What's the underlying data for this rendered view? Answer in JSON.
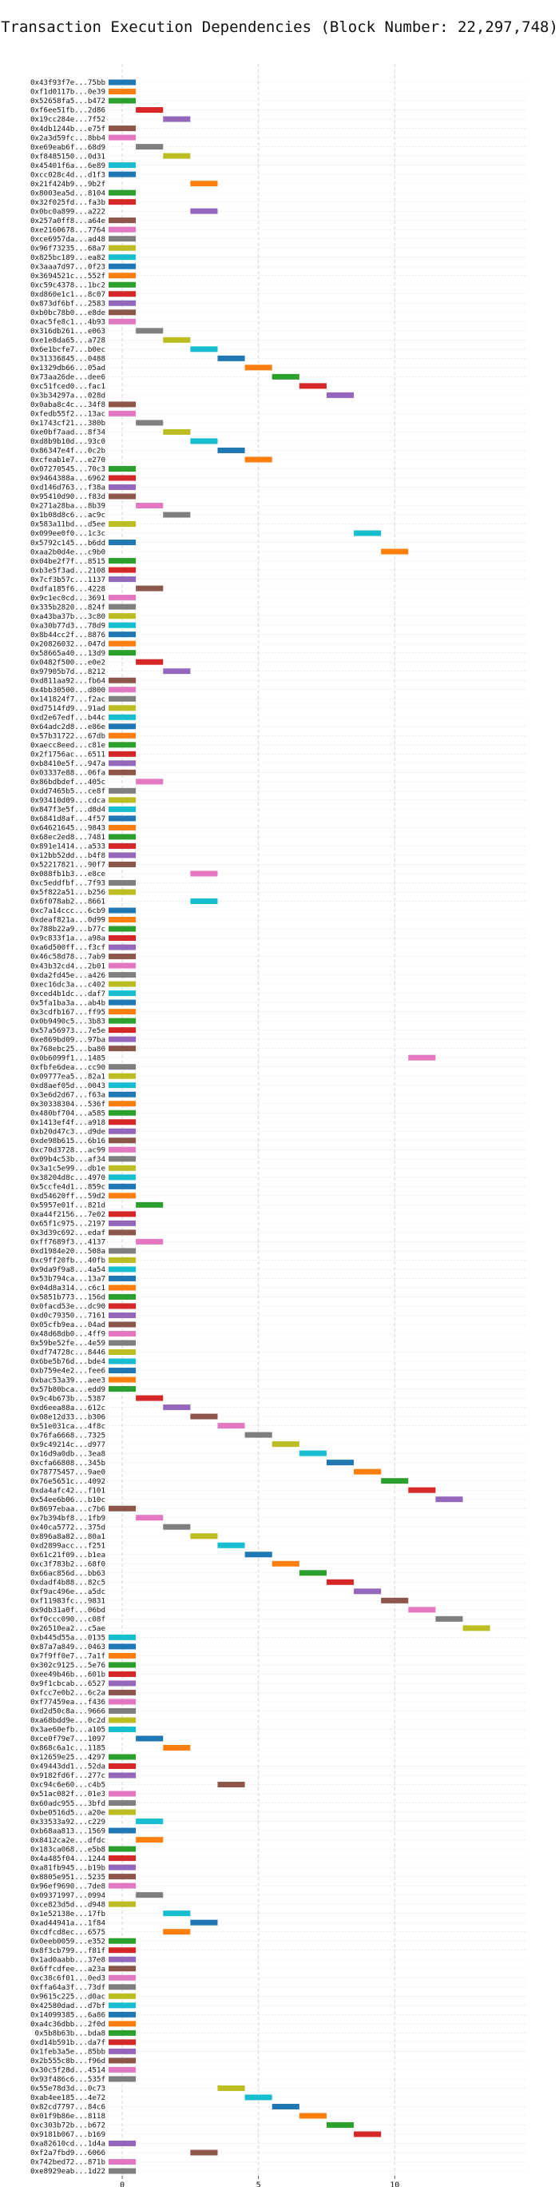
{
  "chart_data": {
    "type": "bar",
    "orientation": "horizontal",
    "title": "Transaction Execution Dependencies (Block Number: 22,297,748)",
    "xlabel": "",
    "ylabel": "",
    "xlim": [
      -0.5,
      14.8
    ],
    "xticks": [
      0,
      5,
      10
    ],
    "grid": "dashed, vertical at ticks and horizontal per row",
    "palette": [
      "#1f77b4",
      "#ff7f0e",
      "#2ca02c",
      "#d62728",
      "#9467bd",
      "#8c564b",
      "#e377c2",
      "#7f7f7f",
      "#bcbd22",
      "#17becf"
    ],
    "bars": [
      {
        "tx": "0x43f93f7e...75bb",
        "start": 0
      },
      {
        "tx": "0xf1d0117b...0e39",
        "start": 0
      },
      {
        "tx": "0x52658fa5...b472",
        "start": 0
      },
      {
        "tx": "0xf6ee51fb...2d86",
        "start": 1
      },
      {
        "tx": "0x19cc284e...7f52",
        "start": 2
      },
      {
        "tx": "0x4db1244b...e75f",
        "start": 0
      },
      {
        "tx": "0x2a3d59fc...8bb4",
        "start": 0
      },
      {
        "tx": "0xe69eab6f...68d9",
        "start": 1
      },
      {
        "tx": "0xf8485150...0d31",
        "start": 2
      },
      {
        "tx": "0x45401f6a...6e89",
        "start": 0
      },
      {
        "tx": "0xcc028c4d...d1f3",
        "start": 0
      },
      {
        "tx": "0x21f424b9...9b2f",
        "start": 3
      },
      {
        "tx": "0x8003ea5d...8104",
        "start": 0
      },
      {
        "tx": "0x32f025fd...fa3b",
        "start": 0
      },
      {
        "tx": "0x0bc0a899...a222",
        "start": 3
      },
      {
        "tx": "0x257a0ff8...a64e",
        "start": 0
      },
      {
        "tx": "0xe2160678...7764",
        "start": 0
      },
      {
        "tx": "0xce6957da...ad48",
        "start": 0
      },
      {
        "tx": "0x96f73235...68a7",
        "start": 0
      },
      {
        "tx": "0x825bc189...ea82",
        "start": 0
      },
      {
        "tx": "0x3aaa7d97...0f23",
        "start": 0
      },
      {
        "tx": "0x3694521c...552f",
        "start": 0
      },
      {
        "tx": "0xc59c4378...1bc2",
        "start": 0
      },
      {
        "tx": "0xd860e1c1...8c07",
        "start": 0
      },
      {
        "tx": "0x873df6bf...2583",
        "start": 0
      },
      {
        "tx": "0xb0bc78b0...e8de",
        "start": 0
      },
      {
        "tx": "0xac5fe8c1...4b93",
        "start": 0
      },
      {
        "tx": "0x316db261...e063",
        "start": 1
      },
      {
        "tx": "0xe1e8da65...a728",
        "start": 2
      },
      {
        "tx": "0x6e1bcfe7...b0ec",
        "start": 3
      },
      {
        "tx": "0x31336845...0488",
        "start": 4
      },
      {
        "tx": "0x1329db66...05ad",
        "start": 5
      },
      {
        "tx": "0x73aa26de...dee6",
        "start": 6
      },
      {
        "tx": "0xc51fced0...fac1",
        "start": 7
      },
      {
        "tx": "0x3b34297a...028d",
        "start": 8
      },
      {
        "tx": "0x0aba8c4c...34f8",
        "start": 0
      },
      {
        "tx": "0xfedb55f2...13ac",
        "start": 0
      },
      {
        "tx": "0x1743cf21...380b",
        "start": 1
      },
      {
        "tx": "0xe0bf7aad...8f34",
        "start": 2
      },
      {
        "tx": "0xd8b9b10d...93c0",
        "start": 3
      },
      {
        "tx": "0x86347e4f...0c2b",
        "start": 4
      },
      {
        "tx": "0xcfeab1e7...e270",
        "start": 5
      },
      {
        "tx": "0x07270545...70c3",
        "start": 0
      },
      {
        "tx": "0x9464388a...6962",
        "start": 0
      },
      {
        "tx": "0xd146d763...f38a",
        "start": 0
      },
      {
        "tx": "0x95410d90...f83d",
        "start": 0
      },
      {
        "tx": "0x271a28ba...8b39",
        "start": 1
      },
      {
        "tx": "0x1b08d8c6...ac9c",
        "start": 2
      },
      {
        "tx": "0x583a11bd...d5ee",
        "start": 0
      },
      {
        "tx": "0x099ee0f0...1c3c",
        "start": 9
      },
      {
        "tx": "0x5792c145...b6dd",
        "start": 0
      },
      {
        "tx": "0xaa2b0d4e...c9b0",
        "start": 10
      },
      {
        "tx": "0x04be2f7f...8515",
        "start": 0
      },
      {
        "tx": "0xb3e5f3ad...2108",
        "start": 0
      },
      {
        "tx": "0x7cf3b57c...1137",
        "start": 0
      },
      {
        "tx": "0xdfa185f6...4228",
        "start": 1
      },
      {
        "tx": "0x9c1ec0cd...3691",
        "start": 0
      },
      {
        "tx": "0x335b2820...824f",
        "start": 0
      },
      {
        "tx": "0xa43ba37b...3c80",
        "start": 0
      },
      {
        "tx": "0xa30b77d3...78d9",
        "start": 0
      },
      {
        "tx": "0x8b44cc2f...8876",
        "start": 0
      },
      {
        "tx": "0x20826032...047d",
        "start": 0
      },
      {
        "tx": "0x58665a40...13d9",
        "start": 0
      },
      {
        "tx": "0x0482f500...e0e2",
        "start": 1
      },
      {
        "tx": "0x97905b7d...8212",
        "start": 2
      },
      {
        "tx": "0xd811aa92...fb64",
        "start": 0
      },
      {
        "tx": "0x4bb30500...d800",
        "start": 0
      },
      {
        "tx": "0x141824f7...f2ac",
        "start": 0
      },
      {
        "tx": "0xd7514fd9...91ad",
        "start": 0
      },
      {
        "tx": "0xd2e67edf...b44c",
        "start": 0
      },
      {
        "tx": "0x64adc2d8...e86e",
        "start": 0
      },
      {
        "tx": "0x57b31722...67db",
        "start": 0
      },
      {
        "tx": "0xaecc8eed...c81e",
        "start": 0
      },
      {
        "tx": "0x2f1756ac...6511",
        "start": 0
      },
      {
        "tx": "0xb8410e5f...947a",
        "start": 0
      },
      {
        "tx": "0x03337e88...06fa",
        "start": 0
      },
      {
        "tx": "0x86bdbdef...405c",
        "start": 1
      },
      {
        "tx": "0xdd7465b5...ce8f",
        "start": 0
      },
      {
        "tx": "0x93410d09...cdca",
        "start": 0
      },
      {
        "tx": "0x847f3e5f...d8d4",
        "start": 0
      },
      {
        "tx": "0x6841d8af...4f57",
        "start": 0
      },
      {
        "tx": "0x64621645...9843",
        "start": 0
      },
      {
        "tx": "0x68ec2ed8...7481",
        "start": 0
      },
      {
        "tx": "0x891e1414...a533",
        "start": 0
      },
      {
        "tx": "0x12bb52dd...b4f8",
        "start": 0
      },
      {
        "tx": "0x52217821...90f7",
        "start": 0
      },
      {
        "tx": "0x088fb1b3...e8ce",
        "start": 3
      },
      {
        "tx": "0xc5eddfbf...7f93",
        "start": 0
      },
      {
        "tx": "0x5f822a51...b256",
        "start": 0
      },
      {
        "tx": "0x6f078ab2...8661",
        "start": 3
      },
      {
        "tx": "0xc7a14ccc...6cb9",
        "start": 0
      },
      {
        "tx": "0xdeaf821a...0d99",
        "start": 0
      },
      {
        "tx": "0x788b22a9...b77c",
        "start": 0
      },
      {
        "tx": "0x9c833f1a...a98a",
        "start": 0
      },
      {
        "tx": "0xa6d500ff...f3cf",
        "start": 0
      },
      {
        "tx": "0x46c58d78...7ab9",
        "start": 0
      },
      {
        "tx": "0x43b32cd4...2b01",
        "start": 0
      },
      {
        "tx": "0xda2fd45e...a426",
        "start": 0
      },
      {
        "tx": "0xec16dc3a...c402",
        "start": 0
      },
      {
        "tx": "0xced4b1dc...daf7",
        "start": 0
      },
      {
        "tx": "0x5fa1ba3a...ab4b",
        "start": 0
      },
      {
        "tx": "0x3cdfb167...ff95",
        "start": 0
      },
      {
        "tx": "0x0b9490c5...3b83",
        "start": 0
      },
      {
        "tx": "0x57a56973...7e5e",
        "start": 0
      },
      {
        "tx": "0xe869bd09...97ba",
        "start": 0
      },
      {
        "tx": "0x768ebc25...ba80",
        "start": 0
      },
      {
        "tx": "0x0b6099f1...1485",
        "start": 11
      },
      {
        "tx": "0xfbfe6dea...cc90",
        "start": 0
      },
      {
        "tx": "0x09777ea5...82a1",
        "start": 0
      },
      {
        "tx": "0xd8aef05d...0043",
        "start": 0
      },
      {
        "tx": "0x3e6d2d67...f63a",
        "start": 0
      },
      {
        "tx": "0x30338304...536f",
        "start": 0
      },
      {
        "tx": "0x480bf704...a585",
        "start": 0
      },
      {
        "tx": "0x1413ef4f...a918",
        "start": 0
      },
      {
        "tx": "0xb20d47c3...d9de",
        "start": 0
      },
      {
        "tx": "0xde98b615...6b16",
        "start": 0
      },
      {
        "tx": "0xc70d3728...ac99",
        "start": 0
      },
      {
        "tx": "0x09b4c53b...af34",
        "start": 0
      },
      {
        "tx": "0x3a1c5e99...db1e",
        "start": 0
      },
      {
        "tx": "0x38204d8c...4970",
        "start": 0
      },
      {
        "tx": "0x5ccfe4d1...859c",
        "start": 0
      },
      {
        "tx": "0xd54620ff...59d2",
        "start": 0
      },
      {
        "tx": "0x5957e01f...821d",
        "start": 1
      },
      {
        "tx": "0xa44f2156...7e02",
        "start": 0
      },
      {
        "tx": "0x65f1c975...2197",
        "start": 0
      },
      {
        "tx": "0x3d39c692...edaf",
        "start": 0
      },
      {
        "tx": "0xff7689f3...4137",
        "start": 1
      },
      {
        "tx": "0xd1984e20...508a",
        "start": 0
      },
      {
        "tx": "0xc9ff20fb...40fb",
        "start": 0
      },
      {
        "tx": "0x9da9f9a8...4a54",
        "start": 0
      },
      {
        "tx": "0x53b794ca...13a7",
        "start": 0
      },
      {
        "tx": "0x04d8a314...c6c1",
        "start": 0
      },
      {
        "tx": "0x5851b773...156d",
        "start": 0
      },
      {
        "tx": "0x0facd53e...dc90",
        "start": 0
      },
      {
        "tx": "0xd0c79350...7161",
        "start": 0
      },
      {
        "tx": "0x05cfb9ea...04ad",
        "start": 0
      },
      {
        "tx": "0x48d68db0...4ff9",
        "start": 0
      },
      {
        "tx": "0x59be52fe...4e59",
        "start": 0
      },
      {
        "tx": "0xdf74728c...8446",
        "start": 0
      },
      {
        "tx": "0x6be5b76d...bde4",
        "start": 0
      },
      {
        "tx": "0xb759e4e2...fee6",
        "start": 0
      },
      {
        "tx": "0xbac53a39...aee3",
        "start": 0
      },
      {
        "tx": "0x57b80bca...edd9",
        "start": 0
      },
      {
        "tx": "0x9c4b673b...5387",
        "start": 1
      },
      {
        "tx": "0xd6eea88a...612c",
        "start": 2
      },
      {
        "tx": "0x08e12d33...b306",
        "start": 3
      },
      {
        "tx": "0x51e031ca...4f8c",
        "start": 4
      },
      {
        "tx": "0x76fa6668...7325",
        "start": 5
      },
      {
        "tx": "0x9c49214c...d977",
        "start": 6
      },
      {
        "tx": "0x16d9a0db...3ea8",
        "start": 7
      },
      {
        "tx": "0xcfa66808...345b",
        "start": 8
      },
      {
        "tx": "0x78775457...9ae0",
        "start": 9
      },
      {
        "tx": "0x76e5651c...4092",
        "start": 10
      },
      {
        "tx": "0xda4afc42...f101",
        "start": 11
      },
      {
        "tx": "0x54ee6b06...b10c",
        "start": 12
      },
      {
        "tx": "0x8697ebaa...c7b6",
        "start": 0
      },
      {
        "tx": "0x7b394bf8...1fb9",
        "start": 1
      },
      {
        "tx": "0x40ca5772...375d",
        "start": 2
      },
      {
        "tx": "0x896a8a82...80a1",
        "start": 3
      },
      {
        "tx": "0xd2899acc...f251",
        "start": 4
      },
      {
        "tx": "0x61c21f09...b1ea",
        "start": 5
      },
      {
        "tx": "0xc3f783b2...68f0",
        "start": 6
      },
      {
        "tx": "0x66ac856d...bb63",
        "start": 7
      },
      {
        "tx": "0xdadf4b88...82c5",
        "start": 8
      },
      {
        "tx": "0xf9ac496e...a5dc",
        "start": 9
      },
      {
        "tx": "0xf11983fc...9831",
        "start": 10
      },
      {
        "tx": "0x9db31a0f...06bd",
        "start": 11
      },
      {
        "tx": "0xf0ccc090...c08f",
        "start": 12
      },
      {
        "tx": "0x26510ea2...c5ae",
        "start": 13
      },
      {
        "tx": "0xb445d55a...0135",
        "start": 0
      },
      {
        "tx": "0x87a7a849...0463",
        "start": 0
      },
      {
        "tx": "0x7f9ff0e7...7a1f",
        "start": 0
      },
      {
        "tx": "0x302c9125...5e76",
        "start": 0
      },
      {
        "tx": "0xee49b46b...601b",
        "start": 0
      },
      {
        "tx": "0x9f1cbcab...6527",
        "start": 0
      },
      {
        "tx": "0xfcc7e0b2...6c2a",
        "start": 0
      },
      {
        "tx": "0xf77459ea...f436",
        "start": 0
      },
      {
        "tx": "0xd2d50c8a...9666",
        "start": 0
      },
      {
        "tx": "0xa68bdd9e...0c2d",
        "start": 0
      },
      {
        "tx": "0x3ae60efb...a105",
        "start": 0
      },
      {
        "tx": "0xce0f79e7...1097",
        "start": 1
      },
      {
        "tx": "0x868c6a1c...1185",
        "start": 2
      },
      {
        "tx": "0x12659e25...4297",
        "start": 0
      },
      {
        "tx": "0x49443dd1...52da",
        "start": 0
      },
      {
        "tx": "0x9182fd6f...277c",
        "start": 0
      },
      {
        "tx": "0xc94c6e60...c4b5",
        "start": 4
      },
      {
        "tx": "0x51ac082f...01e3",
        "start": 0
      },
      {
        "tx": "0x60adc955...3bfd",
        "start": 0
      },
      {
        "tx": "0xbe0516d5...a20e",
        "start": 0
      },
      {
        "tx": "0x33533a92...c229",
        "start": 1
      },
      {
        "tx": "0xb68aa813...1569",
        "start": 0
      },
      {
        "tx": "0x8412ca2e...dfdc",
        "start": 1
      },
      {
        "tx": "0x183ca068...e5b8",
        "start": 0
      },
      {
        "tx": "0x4a485f04...1244",
        "start": 0
      },
      {
        "tx": "0xa81fb945...b19b",
        "start": 0
      },
      {
        "tx": "0x8805e951...5235",
        "start": 0
      },
      {
        "tx": "0x96ef9690...7de8",
        "start": 0
      },
      {
        "tx": "0x09371997...0994",
        "start": 1
      },
      {
        "tx": "0xce823d5d...d948",
        "start": 0
      },
      {
        "tx": "0x1e52138e...17fb",
        "start": 2
      },
      {
        "tx": "0xad44941a...1f84",
        "start": 3
      },
      {
        "tx": "0xcdfcd8ec...6575",
        "start": 2
      },
      {
        "tx": "0x0eeb0059...e352",
        "start": 0
      },
      {
        "tx": "0x8f3cb799...f81f",
        "start": 0
      },
      {
        "tx": "0x1ad0aabb...37e8",
        "start": 0
      },
      {
        "tx": "0x6ffcdfee...a23a",
        "start": 0
      },
      {
        "tx": "0xc38c6f01...0ed3",
        "start": 0
      },
      {
        "tx": "0xffa64a3f...73df",
        "start": 0
      },
      {
        "tx": "0x9615c225...d0ac",
        "start": 0
      },
      {
        "tx": "0x42580dad...d7bf",
        "start": 0
      },
      {
        "tx": "0x14099385...6a86",
        "start": 0
      },
      {
        "tx": "0xa4c36dbb...2f0d",
        "start": 0
      },
      {
        "tx": "0x5b8b63b...bda8",
        "start": 0
      },
      {
        "tx": "0xd14b591b...da7f",
        "start": 0
      },
      {
        "tx": "0x1feb3a5e...85bb",
        "start": 0
      },
      {
        "tx": "0x2b555c8b...f96d",
        "start": 0
      },
      {
        "tx": "0x30c5f28d...4514",
        "start": 0
      },
      {
        "tx": "0x93f486c6...535f",
        "start": 0
      },
      {
        "tx": "0x55e78d3d...0c73",
        "start": 4
      },
      {
        "tx": "0xab4ee185...4e72",
        "start": 5
      },
      {
        "tx": "0x82cd7797...84c6",
        "start": 6
      },
      {
        "tx": "0x01f9b86e...8118",
        "start": 7
      },
      {
        "tx": "0xc303b72b...b672",
        "start": 8
      },
      {
        "tx": "0x9181b067...b169",
        "start": 9
      },
      {
        "tx": "0xa82610cd...1d4a",
        "start": 0
      },
      {
        "tx": "0xf2a7fbd9...6066",
        "start": 3
      },
      {
        "tx": "0x742bed72...871b",
        "start": 0
      },
      {
        "tx": "0xe8929eab...1d22",
        "start": 0
      }
    ]
  }
}
